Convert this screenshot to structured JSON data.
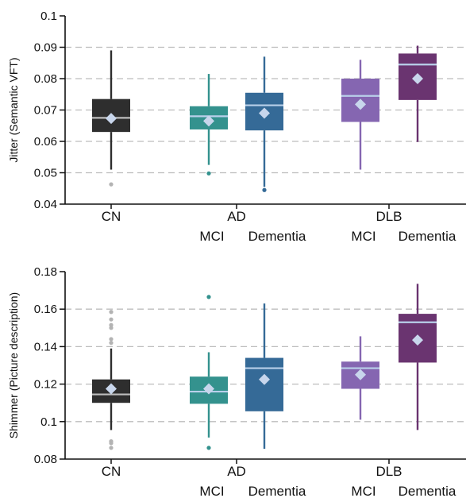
{
  "colors": {
    "CN": "#2e2e2e",
    "AD-MCI": "#34928e",
    "AD-Dementia": "#356a97",
    "DLB-MCI": "#8566b1",
    "DLB-Dementia": "#6a3470",
    "grid": "#bdbdbd",
    "median": "#b9d0ea",
    "mean_marker": "#c8d6ec",
    "cn_median": "#bdbdbd",
    "cn_outlier": "#b3b3b3"
  },
  "chart_data": [
    {
      "type": "box",
      "ylabel": "Jitter (Semantic VFT)",
      "ylim": [
        0.04,
        0.1
      ],
      "yticks": [
        "0.04",
        "0.05",
        "0.06",
        "0.07",
        "0.08",
        "0.09",
        "0.1"
      ],
      "group_labels": [
        "CN",
        "AD",
        "DLB"
      ],
      "sub_labels": [
        "MCI",
        "Dementia",
        "MCI",
        "Dementia"
      ],
      "grid": "horizontal dashed",
      "boxes": [
        {
          "group": "CN",
          "q1": 0.063,
          "median": 0.0675,
          "q3": 0.0735,
          "whisker_low": 0.051,
          "whisker_high": 0.089,
          "mean": 0.0673,
          "outliers": [
            0.0463
          ],
          "color_key": "CN"
        },
        {
          "group": "AD-MCI",
          "q1": 0.0638,
          "median": 0.068,
          "q3": 0.0712,
          "whisker_low": 0.0525,
          "whisker_high": 0.0815,
          "mean": 0.0665,
          "outliers": [
            0.0498
          ],
          "color_key": "AD-MCI"
        },
        {
          "group": "AD-Dementia",
          "q1": 0.0635,
          "median": 0.0715,
          "q3": 0.0755,
          "whisker_low": 0.0455,
          "whisker_high": 0.087,
          "mean": 0.069,
          "outliers": [
            0.0445
          ],
          "color_key": "AD-Dementia"
        },
        {
          "group": "DLB-MCI",
          "q1": 0.0662,
          "median": 0.0745,
          "q3": 0.08,
          "whisker_low": 0.051,
          "whisker_high": 0.086,
          "mean": 0.0718,
          "outliers": [],
          "color_key": "DLB-MCI"
        },
        {
          "group": "DLB-Dementia",
          "q1": 0.0732,
          "median": 0.0845,
          "q3": 0.088,
          "whisker_low": 0.0598,
          "whisker_high": 0.0905,
          "mean": 0.08,
          "outliers": [],
          "color_key": "DLB-Dementia"
        }
      ]
    },
    {
      "type": "box",
      "ylabel": "Shimmer (Picture description)",
      "ylim": [
        0.08,
        0.18
      ],
      "yticks": [
        "0.08",
        "0.1",
        "0.12",
        "0.14",
        "0.16",
        "0.18"
      ],
      "group_labels": [
        "CN",
        "AD",
        "DLB"
      ],
      "sub_labels": [
        "MCI",
        "Dementia",
        "MCI",
        "Dementia"
      ],
      "grid": "horizontal dashed",
      "boxes": [
        {
          "group": "CN",
          "q1": 0.11,
          "median": 0.1145,
          "q3": 0.1225,
          "whisker_low": 0.0955,
          "whisker_high": 0.139,
          "mean": 0.1175,
          "outliers": [
            0.1585,
            0.1545,
            0.1515,
            0.15,
            0.144,
            0.142,
            0.0895,
            0.0885,
            0.086
          ],
          "color_key": "CN"
        },
        {
          "group": "AD-MCI",
          "q1": 0.1095,
          "median": 0.116,
          "q3": 0.124,
          "whisker_low": 0.0915,
          "whisker_high": 0.137,
          "mean": 0.1175,
          "outliers": [
            0.1665,
            0.086
          ],
          "color_key": "AD-MCI"
        },
        {
          "group": "AD-Dementia",
          "q1": 0.1055,
          "median": 0.1285,
          "q3": 0.134,
          "whisker_low": 0.0855,
          "whisker_high": 0.163,
          "mean": 0.1225,
          "outliers": [],
          "color_key": "AD-Dementia"
        },
        {
          "group": "DLB-MCI",
          "q1": 0.1175,
          "median": 0.1285,
          "q3": 0.132,
          "whisker_low": 0.101,
          "whisker_high": 0.1455,
          "mean": 0.125,
          "outliers": [],
          "color_key": "DLB-MCI"
        },
        {
          "group": "DLB-Dementia",
          "q1": 0.1315,
          "median": 0.153,
          "q3": 0.1575,
          "whisker_low": 0.0955,
          "whisker_high": 0.1735,
          "mean": 0.1435,
          "outliers": [],
          "color_key": "DLB-Dementia"
        }
      ]
    }
  ]
}
